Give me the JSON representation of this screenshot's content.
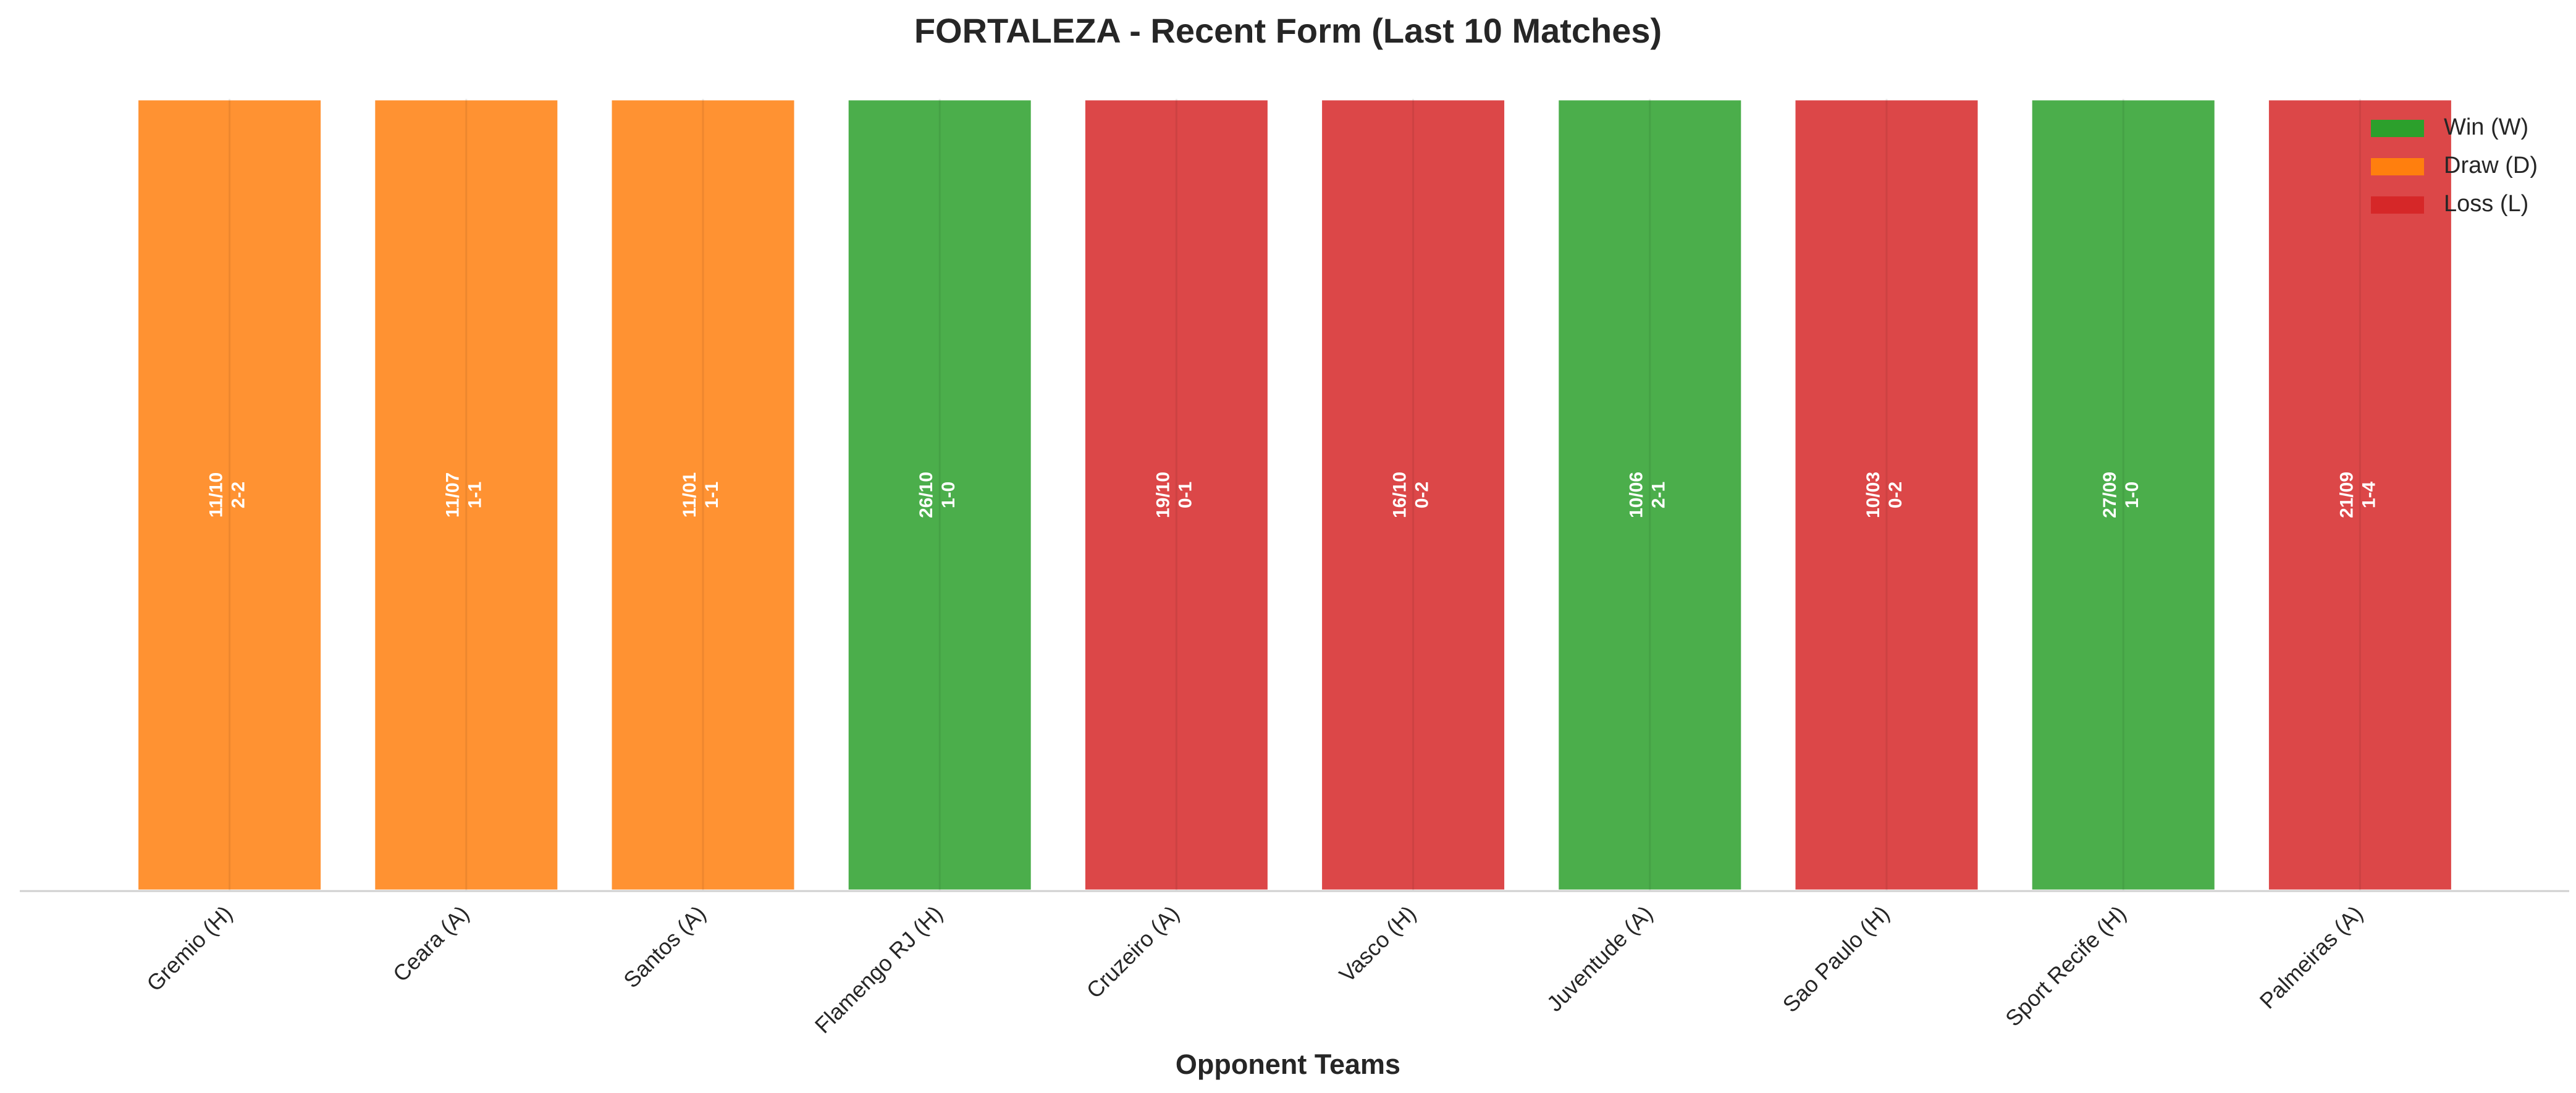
{
  "chart_data": {
    "type": "bar",
    "title": "FORTALEZA - Recent Form (Last 10 Matches)",
    "x_label": "Opponent Teams",
    "categories": [
      "Gremio (H)",
      "Ceara (A)",
      "Santos (A)",
      "Flamengo RJ (H)",
      "Cruzeiro (A)",
      "Vasco (H)",
      "Juventude (A)",
      "Sao Paulo (H)",
      "Sport Recife (H)",
      "Palmeiras (A)"
    ],
    "dates": [
      "11/10",
      "11/07",
      "11/01",
      "26/10",
      "19/10",
      "16/10",
      "10/06",
      "10/03",
      "27/09",
      "21/09"
    ],
    "scores": [
      "2-2",
      "1-1",
      "1-1",
      "1-0",
      "0-1",
      "0-2",
      "2-1",
      "0-2",
      "1-0",
      "1-4"
    ],
    "series": [
      {
        "name": "Win (W)",
        "color": "#2ca02c",
        "values": [
          null,
          null,
          null,
          1,
          null,
          null,
          1,
          null,
          1,
          null
        ]
      },
      {
        "name": "Draw (D)",
        "color": "#ff7f0e",
        "values": [
          1,
          1,
          1,
          null,
          null,
          null,
          null,
          null,
          null,
          null
        ]
      },
      {
        "name": "Loss (L)",
        "color": "#d62728",
        "values": [
          null,
          null,
          null,
          null,
          1,
          1,
          null,
          1,
          null,
          1
        ]
      }
    ],
    "ylim": [
      0,
      1
    ],
    "grid": true,
    "legend": "upper right"
  }
}
